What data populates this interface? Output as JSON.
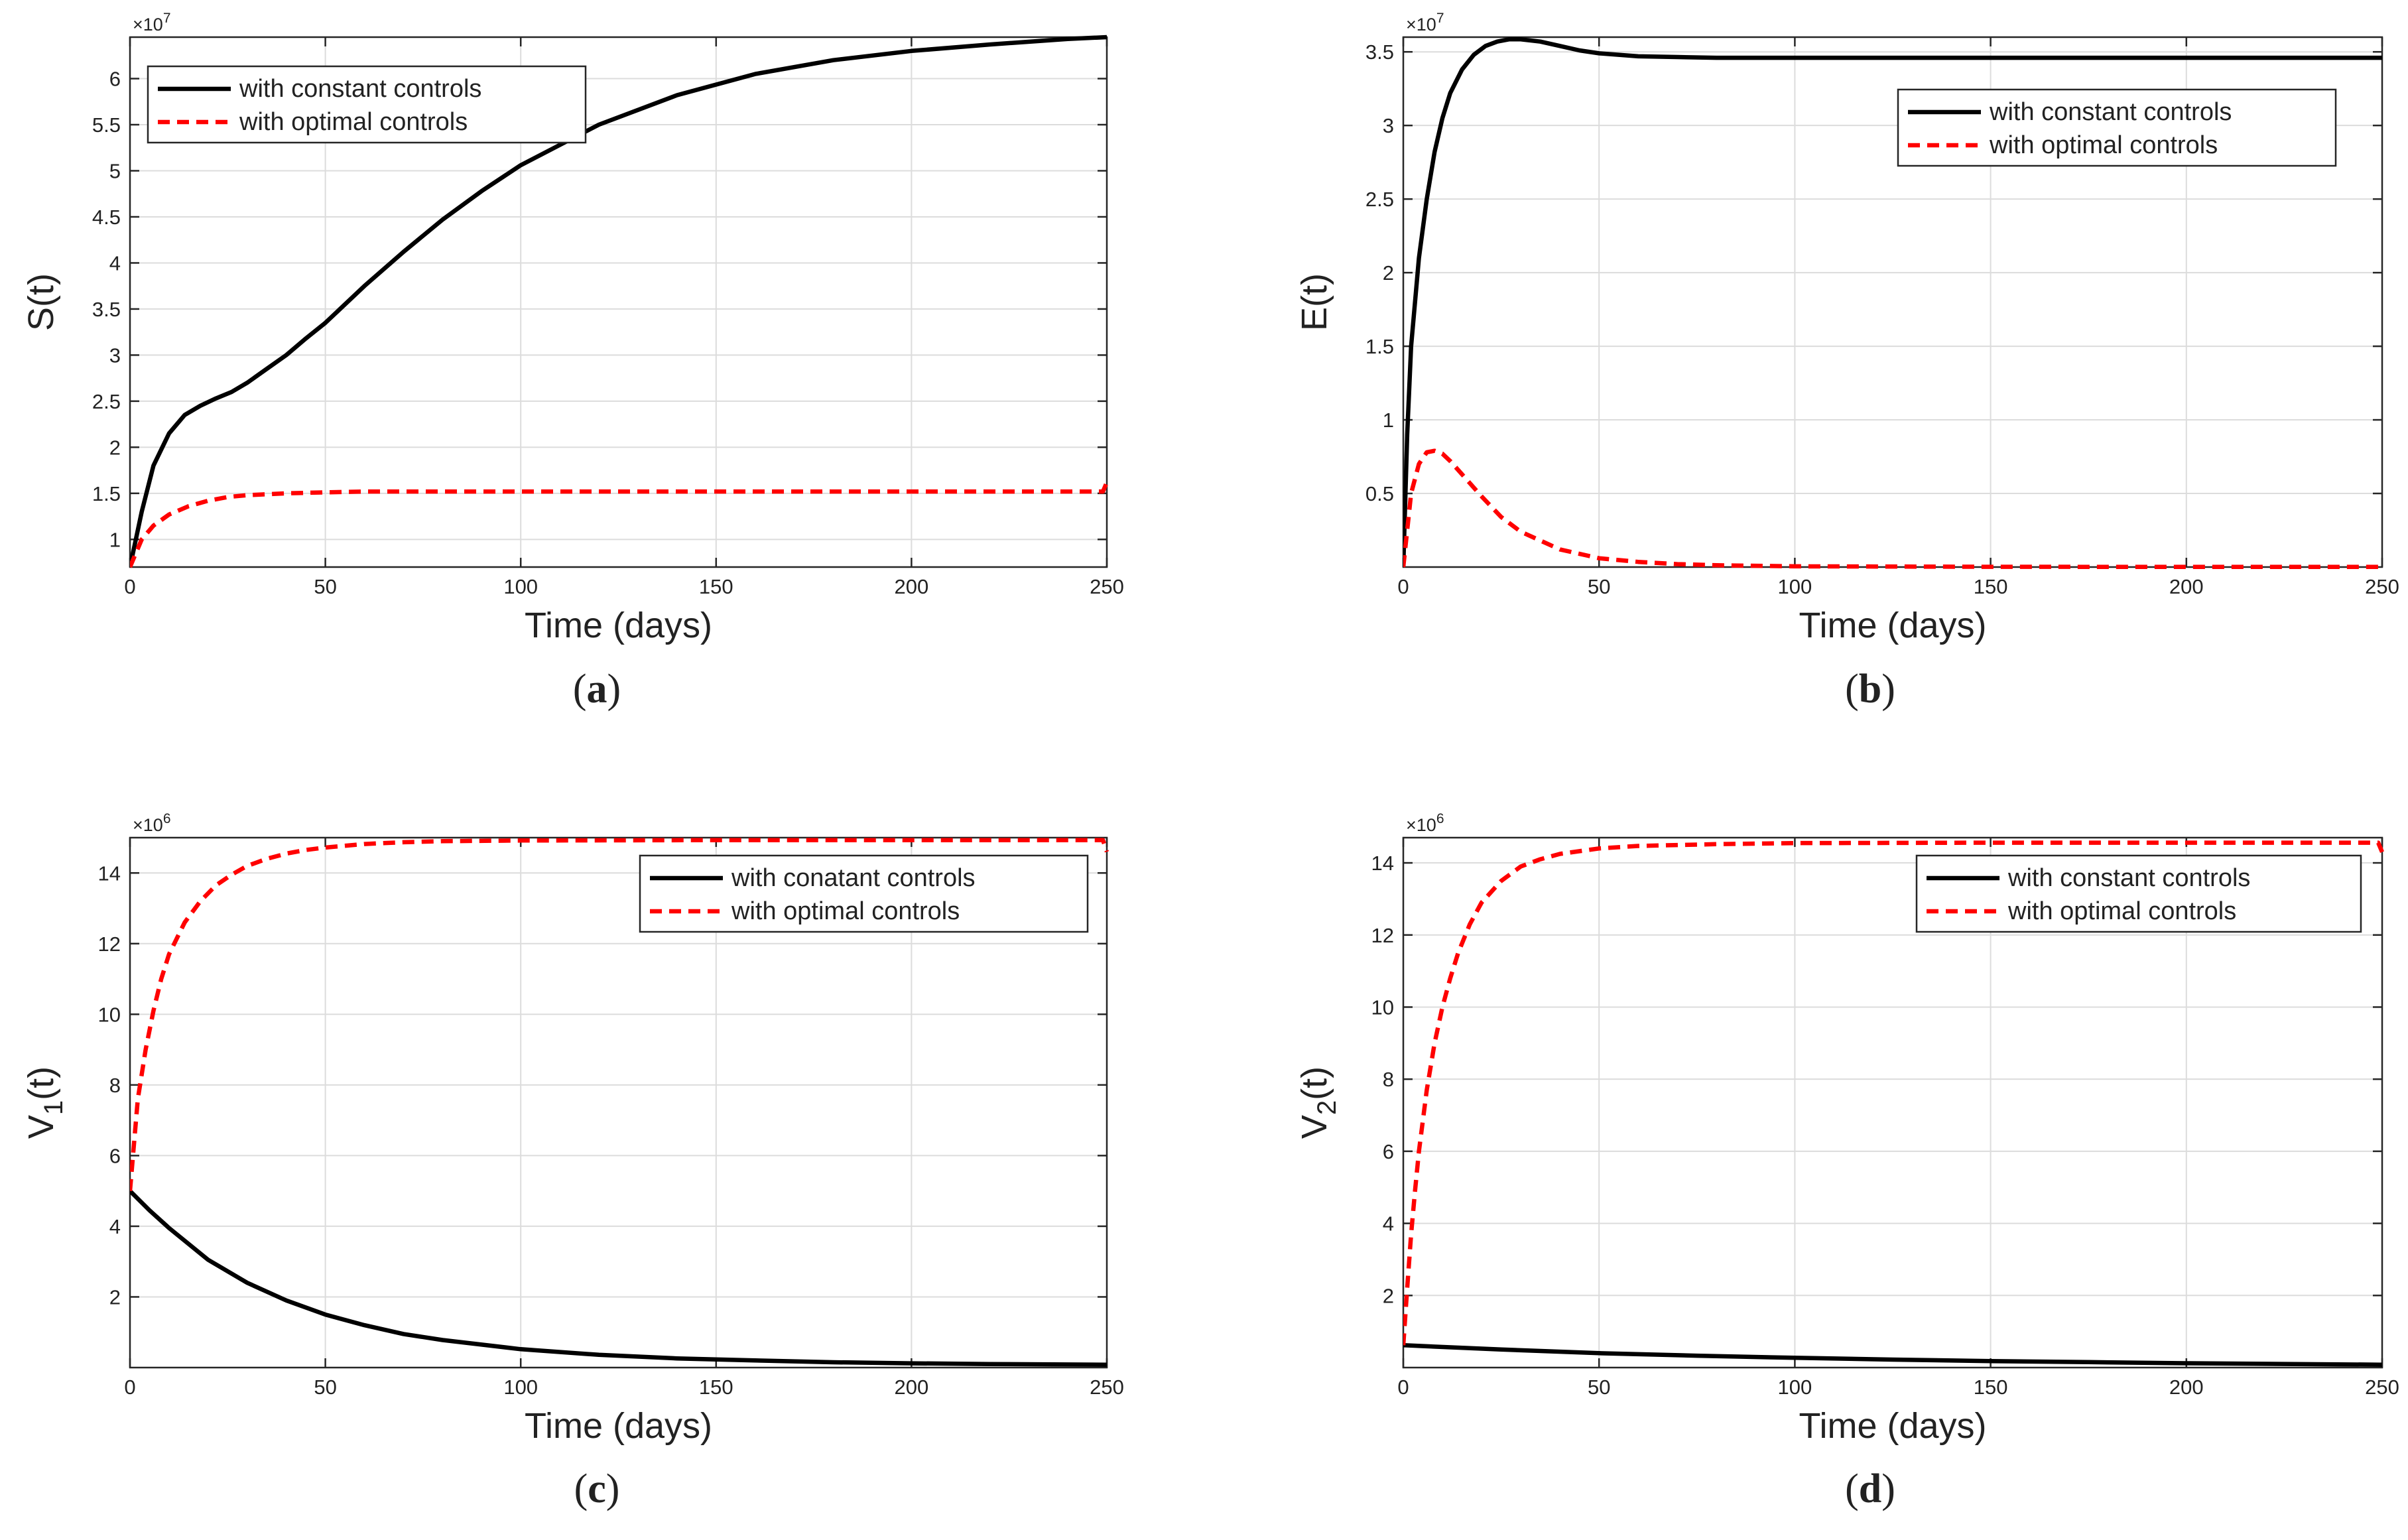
{
  "chart_data": [
    {
      "type": "line",
      "panel_label": "(a)",
      "xlabel": "Time (days)",
      "ylabel": "S(t)",
      "exponent": "×10^7",
      "xlim": [
        0,
        250
      ],
      "ylim": [
        0.7,
        6.45
      ],
      "xticks": [
        0,
        50,
        100,
        150,
        200,
        250
      ],
      "yticks": [
        1,
        1.5,
        2,
        2.5,
        3,
        3.5,
        4,
        4.5,
        5,
        5.5,
        6
      ],
      "grid": true,
      "legend_position": "top-left",
      "series": [
        {
          "name": "with constant controls",
          "style": "solid",
          "color": "#000000",
          "x": [
            0,
            3,
            6,
            10,
            14,
            18,
            22,
            26,
            30,
            35,
            40,
            45,
            50,
            60,
            70,
            80,
            90,
            100,
            120,
            140,
            160,
            180,
            200,
            220,
            240,
            250
          ],
          "y": [
            0.7,
            1.3,
            1.8,
            2.15,
            2.35,
            2.45,
            2.53,
            2.6,
            2.7,
            2.85,
            3.0,
            3.18,
            3.35,
            3.75,
            4.12,
            4.47,
            4.78,
            5.06,
            5.5,
            5.82,
            6.05,
            6.2,
            6.3,
            6.37,
            6.43,
            6.45
          ]
        },
        {
          "name": "with optimal controls",
          "style": "dashed",
          "color": "#ff0000",
          "x": [
            0,
            3,
            6,
            10,
            15,
            20,
            25,
            30,
            40,
            50,
            60,
            80,
            100,
            150,
            200,
            249,
            250
          ],
          "y": [
            0.7,
            1.0,
            1.15,
            1.27,
            1.36,
            1.42,
            1.46,
            1.48,
            1.5,
            1.51,
            1.52,
            1.52,
            1.52,
            1.52,
            1.52,
            1.52,
            1.62
          ]
        }
      ]
    },
    {
      "type": "line",
      "panel_label": "(b)",
      "xlabel": "Time (days)",
      "ylabel": "E(t)",
      "exponent": "×10^7",
      "xlim": [
        0,
        250
      ],
      "ylim": [
        0,
        3.6
      ],
      "xticks": [
        0,
        50,
        100,
        150,
        200,
        250
      ],
      "yticks": [
        0.5,
        1,
        1.5,
        2,
        2.5,
        3,
        3.5
      ],
      "grid": true,
      "legend_position": "top-right",
      "series": [
        {
          "name": "with constant controls",
          "style": "solid",
          "color": "#000000",
          "x": [
            0,
            1,
            2,
            4,
            6,
            8,
            10,
            12,
            15,
            18,
            21,
            24,
            27,
            30,
            35,
            40,
            45,
            50,
            60,
            70,
            80,
            100,
            150,
            200,
            250
          ],
          "y": [
            0,
            0.9,
            1.5,
            2.1,
            2.5,
            2.82,
            3.05,
            3.22,
            3.38,
            3.48,
            3.54,
            3.57,
            3.585,
            3.585,
            3.57,
            3.54,
            3.51,
            3.49,
            3.47,
            3.465,
            3.46,
            3.46,
            3.46,
            3.46,
            3.46
          ]
        },
        {
          "name": "with optimal controls",
          "style": "dashed",
          "color": "#ff0000",
          "x": [
            0,
            2,
            4,
            6,
            8,
            10,
            12,
            15,
            20,
            25,
            30,
            40,
            50,
            60,
            70,
            80,
            100,
            150,
            200,
            250
          ],
          "y": [
            0,
            0.5,
            0.7,
            0.78,
            0.79,
            0.77,
            0.72,
            0.63,
            0.48,
            0.34,
            0.24,
            0.12,
            0.06,
            0.035,
            0.02,
            0.012,
            0.005,
            0.002,
            0.001,
            0.001
          ]
        }
      ]
    },
    {
      "type": "line",
      "panel_label": "(c)",
      "xlabel": "Time (days)",
      "ylabel": "V1(t)",
      "ylabel_main": "V",
      "ylabel_sub": "1",
      "ylabel_tail": "(t)",
      "exponent": "×10^6",
      "xlim": [
        0,
        250
      ],
      "ylim": [
        0,
        15
      ],
      "xticks": [
        0,
        50,
        100,
        150,
        200,
        250
      ],
      "yticks": [
        2,
        4,
        6,
        8,
        10,
        12,
        14
      ],
      "grid": true,
      "legend_position": "top-right",
      "series": [
        {
          "name": "with conatant controls",
          "style": "solid",
          "color": "#000000",
          "x": [
            0,
            5,
            10,
            20,
            30,
            40,
            50,
            60,
            70,
            80,
            100,
            120,
            140,
            160,
            180,
            200,
            220,
            250
          ],
          "y": [
            5.0,
            4.45,
            3.95,
            3.05,
            2.4,
            1.9,
            1.5,
            1.2,
            0.95,
            0.78,
            0.52,
            0.36,
            0.26,
            0.2,
            0.15,
            0.12,
            0.1,
            0.08
          ]
        },
        {
          "name": "with optimal controls",
          "style": "dashed",
          "color": "#ff0000",
          "x": [
            0,
            1,
            2,
            4,
            6,
            8,
            10,
            14,
            18,
            22,
            26,
            30,
            35,
            40,
            45,
            50,
            60,
            70,
            80,
            100,
            150,
            200,
            249,
            250
          ],
          "y": [
            5.0,
            6.3,
            7.6,
            9.0,
            10.1,
            11.0,
            11.7,
            12.6,
            13.2,
            13.65,
            13.95,
            14.2,
            14.4,
            14.55,
            14.65,
            14.72,
            14.82,
            14.87,
            14.9,
            14.92,
            14.93,
            14.93,
            14.93,
            14.6
          ]
        }
      ]
    },
    {
      "type": "line",
      "panel_label": "(d)",
      "xlabel": "Time (days)",
      "ylabel": "V2(t)",
      "ylabel_main": "V",
      "ylabel_sub": "2",
      "ylabel_tail": "(t)",
      "exponent": "×10^6",
      "xlim": [
        0,
        250
      ],
      "ylim": [
        0,
        14.7
      ],
      "xticks": [
        0,
        50,
        100,
        150,
        200,
        250
      ],
      "yticks": [
        2,
        4,
        6,
        8,
        10,
        12,
        14
      ],
      "grid": true,
      "legend_position": "top-right",
      "series": [
        {
          "name": "with constant controls",
          "style": "solid",
          "color": "#000000",
          "x": [
            0,
            25,
            50,
            75,
            100,
            125,
            150,
            175,
            200,
            225,
            250
          ],
          "y": [
            0.62,
            0.5,
            0.4,
            0.33,
            0.27,
            0.22,
            0.18,
            0.15,
            0.12,
            0.1,
            0.08
          ]
        },
        {
          "name": "with optimal controls",
          "style": "dashed",
          "color": "#ff0000",
          "x": [
            0,
            1,
            2,
            3,
            4,
            6,
            8,
            10,
            12,
            14,
            17,
            20,
            25,
            30,
            35,
            40,
            50,
            60,
            80,
            100,
            150,
            200,
            249,
            250
          ],
          "y": [
            0.62,
            2.2,
            3.7,
            4.9,
            6.0,
            7.7,
            9.0,
            10.0,
            10.8,
            11.5,
            12.3,
            12.9,
            13.5,
            13.9,
            14.1,
            14.25,
            14.4,
            14.47,
            14.52,
            14.55,
            14.56,
            14.56,
            14.56,
            14.3
          ]
        }
      ]
    }
  ]
}
